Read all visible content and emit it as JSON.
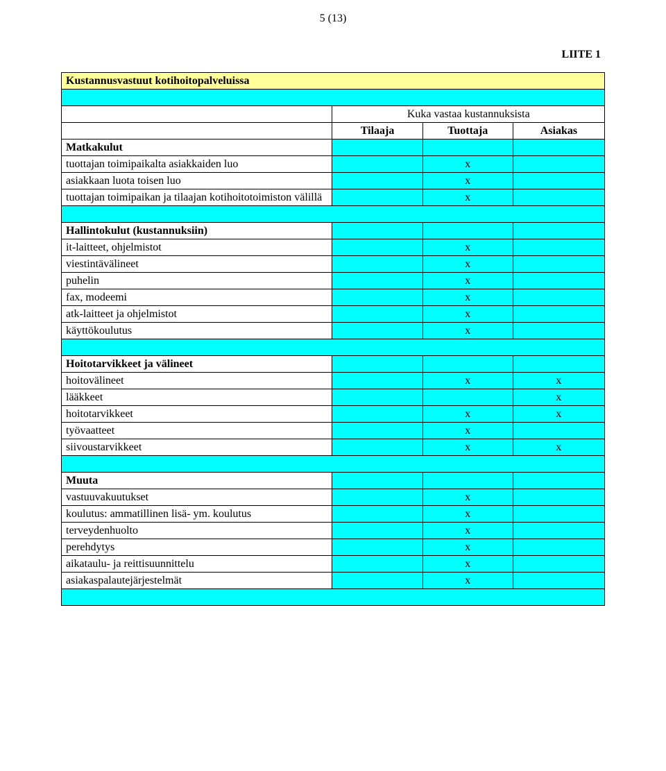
{
  "page_number_label": "5 (13)",
  "liite_label": "LIITE 1",
  "title": "Kustannusvastuut kotihoitopalveluissa",
  "header_merged": "Kuka vastaa kustannuksista",
  "col_headers": {
    "c1": "Tilaaja",
    "c2": "Tuottaja",
    "c3": "Asiakas"
  },
  "colors": {
    "title_bg": "#ffff99",
    "cell_bg": "#00ffff",
    "border": "#000000",
    "mark": "x"
  },
  "sections": [
    {
      "heading": "Matkakulut",
      "rows": [
        {
          "label": "tuottajan toimipaikalta asiakkaiden luo",
          "c1": "",
          "c2": "x",
          "c3": ""
        },
        {
          "label": "asiakkaan luota toisen luo",
          "c1": "",
          "c2": "x",
          "c3": ""
        },
        {
          "label": "tuottajan toimipaikan ja tilaajan kotihoitotoimiston välillä",
          "c1": "",
          "c2": "x",
          "c3": ""
        }
      ]
    },
    {
      "heading": "Hallintokulut (kustannuksiin)",
      "rows": [
        {
          "label": "it-laitteet, ohjelmistot",
          "c1": "",
          "c2": "x",
          "c3": ""
        },
        {
          "label": "viestintävälineet",
          "c1": "",
          "c2": "x",
          "c3": ""
        },
        {
          "label": "puhelin",
          "c1": "",
          "c2": "x",
          "c3": ""
        },
        {
          "label": "fax, modeemi",
          "c1": "",
          "c2": "x",
          "c3": ""
        },
        {
          "label": "atk-laitteet ja ohjelmistot",
          "c1": "",
          "c2": "x",
          "c3": ""
        },
        {
          "label": "käyttökoulutus",
          "c1": "",
          "c2": "x",
          "c3": ""
        }
      ]
    },
    {
      "heading": "Hoitotarvikkeet ja välineet",
      "rows": [
        {
          "label": "hoitovälineet",
          "c1": "",
          "c2": "x",
          "c3": "x"
        },
        {
          "label": "lääkkeet",
          "c1": "",
          "c2": "",
          "c3": "x"
        },
        {
          "label": "hoitotarvikkeet",
          "c1": "",
          "c2": "x",
          "c3": "x"
        },
        {
          "label": "työvaatteet",
          "c1": "",
          "c2": "x",
          "c3": ""
        },
        {
          "label": "siivoustarvikkeet",
          "c1": "",
          "c2": "x",
          "c3": "x"
        }
      ]
    },
    {
      "heading": "Muuta",
      "rows": [
        {
          "label": "vastuuvakuutukset",
          "c1": "",
          "c2": "x",
          "c3": ""
        },
        {
          "label": "koulutus: ammatillinen lisä- ym. koulutus",
          "c1": "",
          "c2": "x",
          "c3": ""
        },
        {
          "label": "terveydenhuolto",
          "c1": "",
          "c2": "x",
          "c3": ""
        },
        {
          "label": "perehdytys",
          "c1": "",
          "c2": "x",
          "c3": ""
        },
        {
          "label": "aikataulu- ja reittisuunnittelu",
          "c1": "",
          "c2": "x",
          "c3": ""
        },
        {
          "label": "asiakaspalautejärjestelmät",
          "c1": "",
          "c2": "x",
          "c3": ""
        }
      ]
    }
  ]
}
